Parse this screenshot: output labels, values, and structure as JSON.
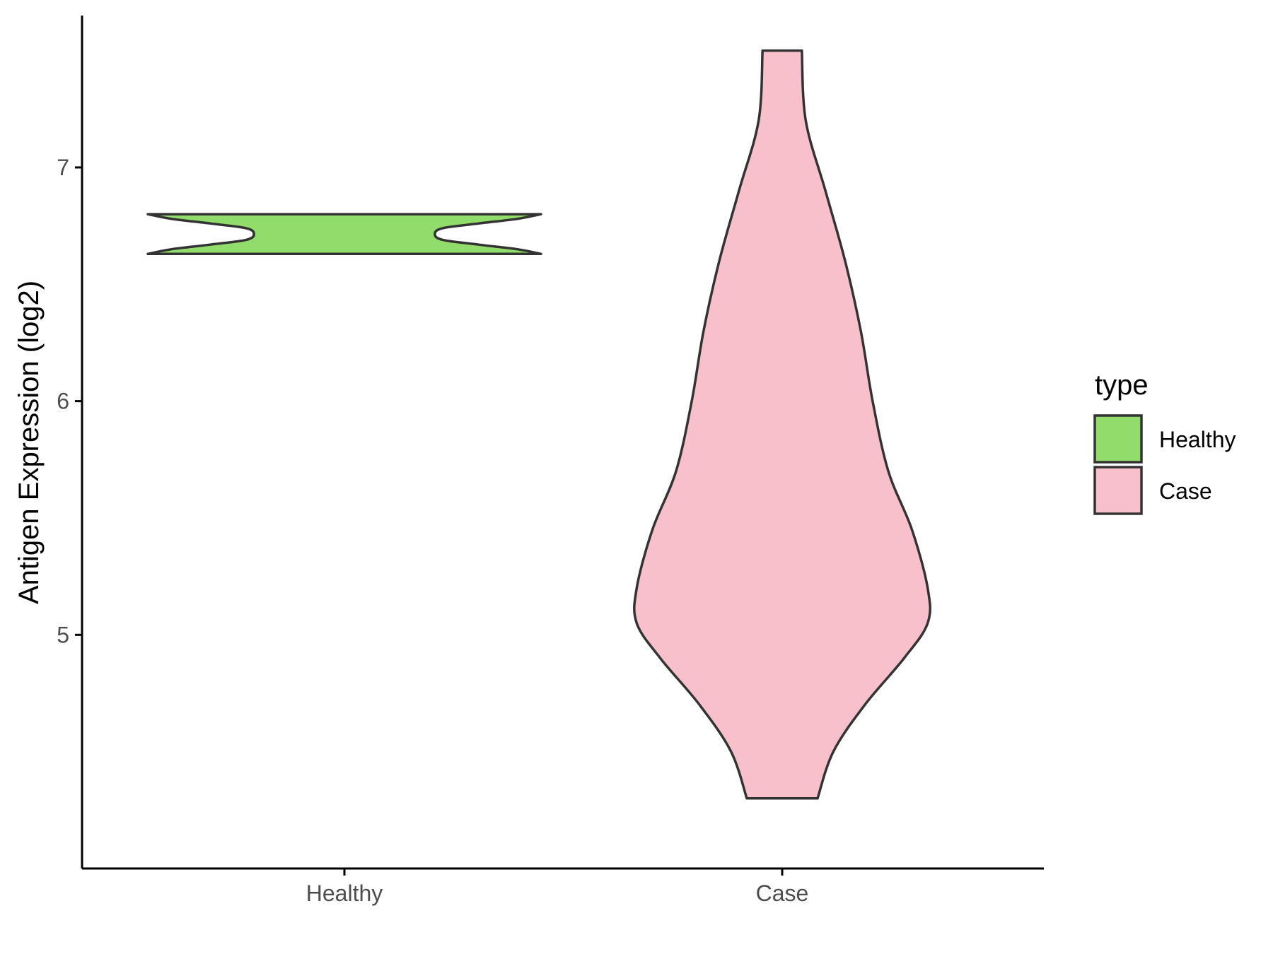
{
  "chart_data": {
    "type": "violin",
    "title": "",
    "xlabel": "",
    "ylabel": "Antigen Expression (log2)",
    "categories": [
      "Healthy",
      "Case"
    ],
    "ylim": [
      4.0,
      7.65
    ],
    "yticks": [
      5,
      6,
      7
    ],
    "grid": false,
    "legend": {
      "title": "type",
      "position": "right",
      "entries": [
        {
          "label": "Healthy",
          "color": "#91dc6a"
        },
        {
          "label": "Case",
          "color": "#f8c0cb"
        }
      ]
    },
    "series": [
      {
        "category": "Healthy",
        "color": "#91dc6a",
        "min": 6.63,
        "max": 6.8,
        "density": [
          [
            6.63,
            1.0
          ],
          [
            6.65,
            0.88
          ],
          [
            6.67,
            0.68
          ],
          [
            6.69,
            0.5
          ],
          [
            6.715,
            0.46
          ],
          [
            6.74,
            0.5
          ],
          [
            6.76,
            0.68
          ],
          [
            6.78,
            0.88
          ],
          [
            6.8,
            1.0
          ]
        ]
      },
      {
        "category": "Case",
        "color": "#f8c0cb",
        "min": 4.3,
        "max": 7.5,
        "density": [
          [
            4.3,
            0.18
          ],
          [
            4.5,
            0.26
          ],
          [
            4.7,
            0.42
          ],
          [
            4.9,
            0.62
          ],
          [
            5.05,
            0.74
          ],
          [
            5.2,
            0.74
          ],
          [
            5.45,
            0.66
          ],
          [
            5.7,
            0.54
          ],
          [
            6.0,
            0.46
          ],
          [
            6.3,
            0.4
          ],
          [
            6.6,
            0.32
          ],
          [
            6.9,
            0.22
          ],
          [
            7.2,
            0.12
          ],
          [
            7.5,
            0.1
          ]
        ]
      }
    ]
  }
}
